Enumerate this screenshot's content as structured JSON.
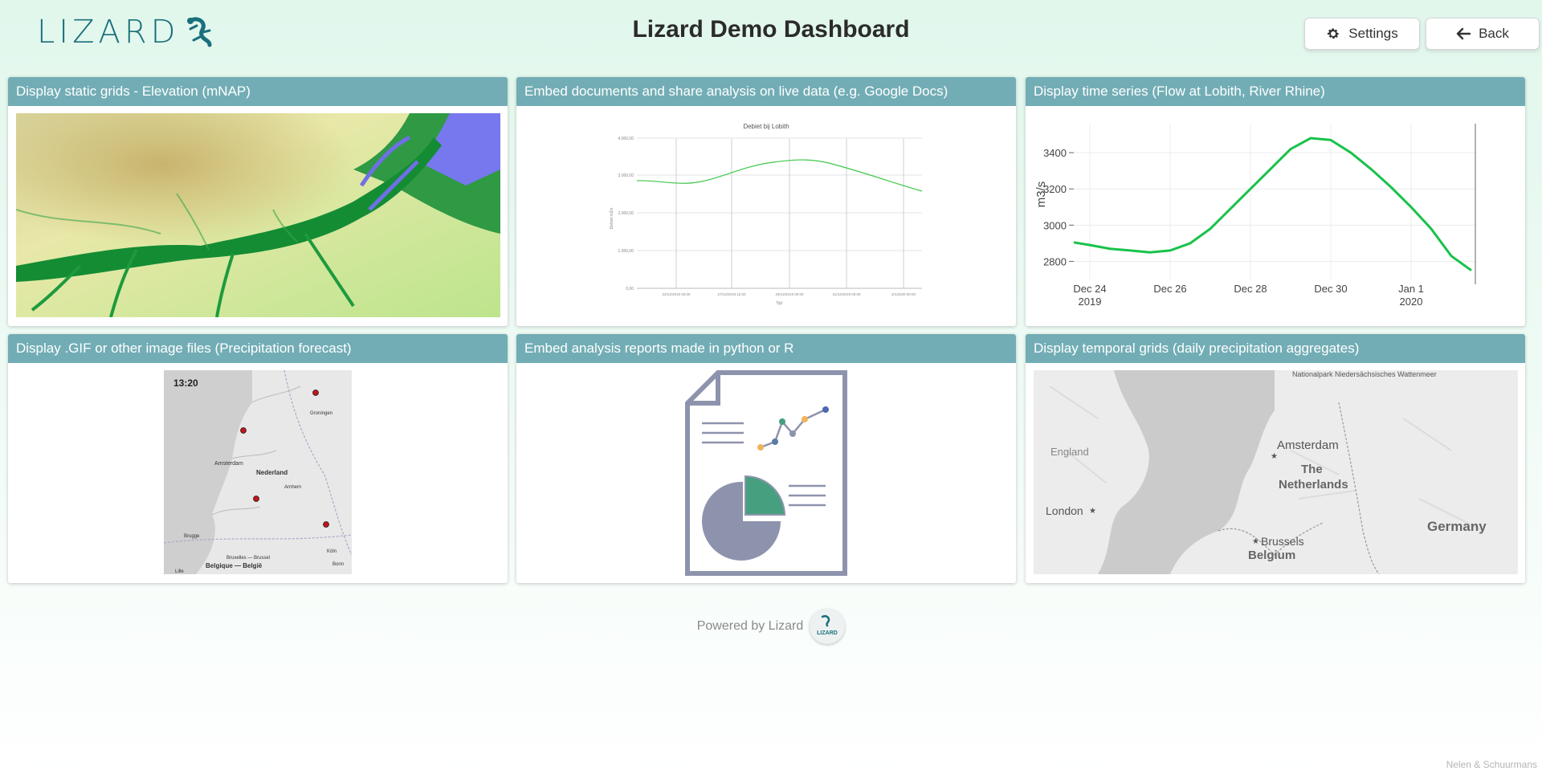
{
  "header": {
    "logo_text": "LIZARD",
    "title": "Lizard Demo Dashboard",
    "settings_label": "Settings",
    "back_label": "Back"
  },
  "tiles": [
    {
      "title": "Display static grids - Elevation (mNAP)"
    },
    {
      "title": "Embed documents and share analysis on live data (e.g. Google Docs)",
      "doc_chart_title": "Debiet bij Lobith",
      "doc_y_ticks": [
        "4.000,00",
        "3.000,00",
        "2.000,00",
        "1.000,00",
        "0,00"
      ],
      "doc_x_ticks": [
        "23/12/2019 00:00",
        "27/12/2019 12:00",
        "29/12/2019 00:00",
        "31/12/2019 00:00",
        "2/1/2020 00:00"
      ],
      "doc_x_label": "Tijd",
      "doc_y_label": "Debiet m3/s"
    },
    {
      "title": "Display time series (Flow at Lobith, River Rhine)"
    },
    {
      "title": "Display .GIF or other image files (Precipitation forecast)",
      "gif_time": "13:20",
      "gif_labels": [
        "Groningen",
        "Amsterdam",
        "Nederland",
        "Arnhem",
        "Brugge",
        "Bruxelles — Brussel",
        "Belgique — België",
        "Köln",
        "Bonn",
        "Lille"
      ]
    },
    {
      "title": "Embed analysis reports made in python or R"
    },
    {
      "title": "Display temporal grids (daily precipitation aggregates)",
      "map_labels": [
        "Nationalpark Niedersächsisches Wattenmeer",
        "England",
        "Amsterdam",
        "The",
        "Netherlands",
        "London",
        "Brussels",
        "Belgium",
        "Germany"
      ]
    }
  ],
  "chart_data": {
    "type": "line",
    "ylabel": "m3/s",
    "ylim": [
      2700,
      3560
    ],
    "y_ticks": [
      2800,
      3000,
      3200,
      3400
    ],
    "x_tick_labels": [
      [
        "Dec 24",
        "2019"
      ],
      [
        "Dec 26",
        ""
      ],
      [
        "Dec 28",
        ""
      ],
      [
        "Dec 30",
        ""
      ],
      [
        "Jan 1",
        "2020"
      ]
    ],
    "x_tick_days": [
      0,
      2,
      4,
      6,
      8
    ],
    "xlim": [
      -0.4,
      9.6
    ],
    "series": [
      {
        "color": "#18c24a",
        "x": [
          -0.4,
          0.0,
          0.5,
          1.0,
          1.5,
          2.0,
          2.5,
          3.0,
          3.5,
          4.0,
          4.5,
          5.0,
          5.5,
          6.0,
          6.5,
          7.0,
          7.5,
          8.0,
          8.5,
          9.0,
          9.5
        ],
        "y": [
          2905,
          2890,
          2870,
          2860,
          2850,
          2860,
          2900,
          2980,
          3090,
          3200,
          3310,
          3420,
          3480,
          3470,
          3400,
          3310,
          3210,
          3100,
          2980,
          2830,
          2750
        ]
      }
    ]
  },
  "footer": {
    "powered": "Powered by Lizard",
    "badge_text": "LIZARD"
  },
  "credits": "Nelen & Schuurmans",
  "colors": {
    "accent": "#72adb5",
    "brand": "#1a6f7c",
    "series": "#18c24a"
  }
}
